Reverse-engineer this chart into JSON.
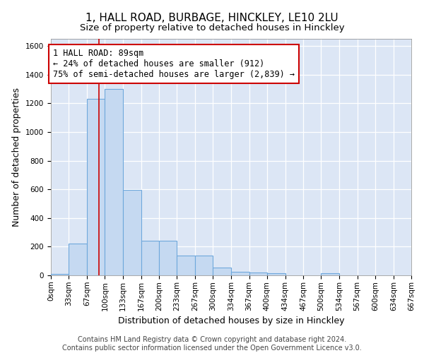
{
  "title": "1, HALL ROAD, BURBAGE, HINCKLEY, LE10 2LU",
  "subtitle": "Size of property relative to detached houses in Hinckley",
  "xlabel": "Distribution of detached houses by size in Hinckley",
  "ylabel": "Number of detached properties",
  "bar_color": "#c5d9f1",
  "bar_edge_color": "#6fa8dc",
  "background_color": "#dce6f5",
  "grid_color": "#ffffff",
  "bin_edges": [
    0,
    33,
    67,
    100,
    133,
    167,
    200,
    233,
    267,
    300,
    334,
    367,
    400,
    434,
    467,
    500,
    534,
    567,
    600,
    634,
    667
  ],
  "bin_labels": [
    "0sqm",
    "33sqm",
    "67sqm",
    "100sqm",
    "133sqm",
    "167sqm",
    "200sqm",
    "233sqm",
    "267sqm",
    "300sqm",
    "334sqm",
    "367sqm",
    "400sqm",
    "434sqm",
    "467sqm",
    "500sqm",
    "534sqm",
    "567sqm",
    "600sqm",
    "634sqm",
    "667sqm"
  ],
  "counts": [
    10,
    220,
    1230,
    1300,
    595,
    240,
    240,
    140,
    140,
    55,
    25,
    20,
    15,
    0,
    0,
    15,
    0,
    0,
    0,
    0
  ],
  "vline_x": 89,
  "vline_color": "#cc0000",
  "annotation_text": "1 HALL ROAD: 89sqm\n← 24% of detached houses are smaller (912)\n75% of semi-detached houses are larger (2,839) →",
  "annotation_box_color": "#ffffff",
  "annotation_box_edge": "#cc0000",
  "ylim": [
    0,
    1650
  ],
  "yticks": [
    0,
    200,
    400,
    600,
    800,
    1000,
    1200,
    1400,
    1600
  ],
  "footer_text": "Contains HM Land Registry data © Crown copyright and database right 2024.\nContains public sector information licensed under the Open Government Licence v3.0.",
  "title_fontsize": 11,
  "subtitle_fontsize": 9.5,
  "xlabel_fontsize": 9,
  "ylabel_fontsize": 9,
  "tick_fontsize": 7.5,
  "annotation_fontsize": 8.5,
  "footer_fontsize": 7
}
